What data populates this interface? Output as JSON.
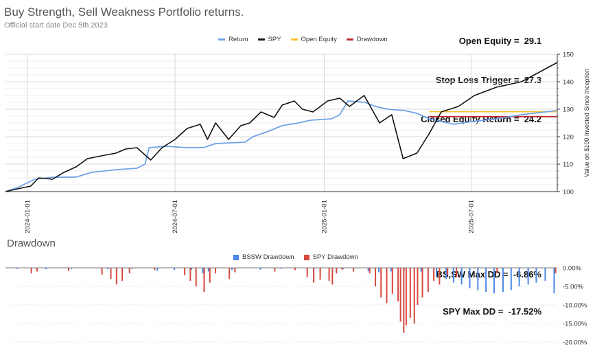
{
  "header": {
    "title": "Buy Strength, Sell Weakness Portfolio returns.",
    "subtitle": "Official start date Dec 5th 2023",
    "stats": [
      {
        "label": "Open Equity",
        "value": "29.1"
      },
      {
        "label": "Stop Loss Trigger",
        "value": "27.3"
      },
      {
        "label": "Closed Equity Return",
        "value": "24.2"
      }
    ]
  },
  "drawdown_section": {
    "title": "Drawdown",
    "stats": [
      {
        "label": "BS,SW Max DD",
        "value": "-6.86%"
      },
      {
        "label": "SPY Max DD",
        "value": "-17.52%"
      }
    ]
  },
  "colors": {
    "return": "#6fa3e8",
    "spy": "#111111",
    "open_equity": "#f6c024",
    "drawdown": "#c0282d",
    "bssw_dd": "#4a87e8",
    "spy_dd": "#d9473d"
  },
  "chart_data": [
    {
      "type": "line",
      "ylabel": "Value on $100 Invested Since Inception",
      "ylim": [
        100,
        150
      ],
      "y_ticks": [
        "100",
        "110",
        "120",
        "130",
        "140",
        "150"
      ],
      "x_ticks": [
        "2024-01-01",
        "2024-07-01",
        "2025-01-01",
        "2025-07-01"
      ],
      "xlim": [
        "2023-12-05",
        "2025-10-15"
      ],
      "grid": true,
      "legend": "top-center",
      "series": [
        {
          "name": "Return",
          "points": [
            [
              "2023-12-05",
              100
            ],
            [
              "2023-12-20",
              101.5
            ],
            [
              "2024-01-10",
              104.5
            ],
            [
              "2024-02-01",
              105.2
            ],
            [
              "2024-03-01",
              105.3
            ],
            [
              "2024-03-20",
              107
            ],
            [
              "2024-04-20",
              108
            ],
            [
              "2024-05-15",
              108.5
            ],
            [
              "2024-05-25",
              110
            ],
            [
              "2024-05-30",
              116
            ],
            [
              "2024-06-20",
              116.5
            ],
            [
              "2024-07-15",
              116
            ],
            [
              "2024-08-05",
              116
            ],
            [
              "2024-08-20",
              117.5
            ],
            [
              "2024-09-25",
              118
            ],
            [
              "2024-10-05",
              120
            ],
            [
              "2024-10-20",
              121.5
            ],
            [
              "2024-11-10",
              124
            ],
            [
              "2024-11-30",
              125
            ],
            [
              "2024-12-15",
              126
            ],
            [
              "2025-01-10",
              126.5
            ],
            [
              "2025-01-20",
              128
            ],
            [
              "2025-01-30",
              133
            ],
            [
              "2025-02-20",
              132.5
            ],
            [
              "2025-03-05",
              131
            ],
            [
              "2025-03-20",
              130
            ],
            [
              "2025-04-10",
              129.5
            ],
            [
              "2025-04-25",
              128.5
            ],
            [
              "2025-05-10",
              126.5
            ],
            [
              "2025-06-10",
              124.5
            ],
            [
              "2025-07-01",
              125.5
            ],
            [
              "2025-08-01",
              126.5
            ],
            [
              "2025-09-01",
              128
            ],
            [
              "2025-10-15",
              129.5
            ]
          ]
        },
        {
          "name": "SPY",
          "points": [
            [
              "2023-12-05",
              100
            ],
            [
              "2023-12-20",
              101
            ],
            [
              "2024-01-05",
              102
            ],
            [
              "2024-01-15",
              105
            ],
            [
              "2024-02-01",
              104.5
            ],
            [
              "2024-02-15",
              107
            ],
            [
              "2024-03-01",
              109
            ],
            [
              "2024-03-15",
              112
            ],
            [
              "2024-04-01",
              113
            ],
            [
              "2024-04-19",
              114
            ],
            [
              "2024-05-01",
              115.5
            ],
            [
              "2024-05-15",
              116
            ],
            [
              "2024-06-01",
              111.5
            ],
            [
              "2024-06-15",
              116
            ],
            [
              "2024-07-01",
              119
            ],
            [
              "2024-07-16",
              123
            ],
            [
              "2024-08-01",
              124.5
            ],
            [
              "2024-08-10",
              119
            ],
            [
              "2024-08-20",
              125
            ],
            [
              "2024-09-05",
              119
            ],
            [
              "2024-09-20",
              124
            ],
            [
              "2024-10-01",
              125
            ],
            [
              "2024-10-15",
              129
            ],
            [
              "2024-10-31",
              127
            ],
            [
              "2024-11-10",
              131.5
            ],
            [
              "2024-11-25",
              133
            ],
            [
              "2024-12-05",
              130
            ],
            [
              "2024-12-18",
              129
            ],
            [
              "2025-01-05",
              133
            ],
            [
              "2025-01-20",
              134
            ],
            [
              "2025-02-01",
              131
            ],
            [
              "2025-02-19",
              135
            ],
            [
              "2025-03-10",
              125
            ],
            [
              "2025-03-25",
              128
            ],
            [
              "2025-04-08",
              112
            ],
            [
              "2025-04-25",
              114
            ],
            [
              "2025-05-10",
              121
            ],
            [
              "2025-05-25",
              129
            ],
            [
              "2025-06-15",
              131
            ],
            [
              "2025-07-05",
              135
            ],
            [
              "2025-08-01",
              138
            ],
            [
              "2025-09-01",
              140
            ],
            [
              "2025-10-15",
              147
            ]
          ]
        },
        {
          "name": "Open Equity",
          "points": [
            [
              "2025-05-10",
              129.1
            ],
            [
              "2025-10-15",
              129.1
            ]
          ]
        },
        {
          "name": "Drawdown",
          "points": [
            [
              "2025-05-10",
              127.3
            ],
            [
              "2025-10-15",
              127.3
            ]
          ]
        }
      ]
    },
    {
      "type": "bar",
      "title": "Drawdown",
      "ylim": [
        -20,
        0
      ],
      "y_ticks": [
        "0.00%",
        "-5.00%",
        "-10.00%",
        "-15.00%",
        "-20.00%"
      ],
      "legend": "top-center",
      "series": [
        {
          "name": "BSSW Drawdown",
          "points": [
            [
              "2023-12-20",
              -0.3
            ],
            [
              "2024-01-25",
              -0.4
            ],
            [
              "2024-02-25",
              -0.3
            ],
            [
              "2024-04-10",
              -0.4
            ],
            [
              "2024-05-10",
              -0.3
            ],
            [
              "2024-06-10",
              -0.8
            ],
            [
              "2024-07-01",
              -0.6
            ],
            [
              "2024-07-22",
              -0.5
            ],
            [
              "2024-08-05",
              -1.5
            ],
            [
              "2024-08-12",
              -1.0
            ],
            [
              "2024-09-10",
              -0.6
            ],
            [
              "2024-10-15",
              -0.5
            ],
            [
              "2024-11-10",
              -0.3
            ],
            [
              "2024-12-20",
              -0.5
            ],
            [
              "2025-01-25",
              -0.3
            ],
            [
              "2025-02-25",
              -0.9
            ],
            [
              "2025-03-10",
              -1.2
            ],
            [
              "2025-03-25",
              -1.0
            ],
            [
              "2025-04-10",
              -0.8
            ],
            [
              "2025-05-01",
              -1.0
            ],
            [
              "2025-05-20",
              -2.5
            ],
            [
              "2025-06-01",
              -3.0
            ],
            [
              "2025-06-10",
              -4.0
            ],
            [
              "2025-06-20",
              -4.5
            ],
            [
              "2025-06-30",
              -5.5
            ],
            [
              "2025-07-10",
              -6.0
            ],
            [
              "2025-07-20",
              -6.5
            ],
            [
              "2025-07-30",
              -6.86
            ],
            [
              "2025-08-10",
              -6.5
            ],
            [
              "2025-08-20",
              -6.0
            ],
            [
              "2025-08-30",
              -5.0
            ],
            [
              "2025-09-10",
              -4.5
            ],
            [
              "2025-09-20",
              -4.0
            ],
            [
              "2025-10-01",
              -3.5
            ],
            [
              "2025-10-12",
              -6.9
            ]
          ]
        },
        {
          "name": "SPY Drawdown",
          "points": [
            [
              "2024-01-05",
              -1.5
            ],
            [
              "2024-01-12",
              -1.0
            ],
            [
              "2024-02-20",
              -0.8
            ],
            [
              "2024-04-01",
              -1.8
            ],
            [
              "2024-04-12",
              -3.0
            ],
            [
              "2024-04-19",
              -4.5
            ],
            [
              "2024-04-26",
              -3.5
            ],
            [
              "2024-05-05",
              -1.5
            ],
            [
              "2024-06-05",
              -0.6
            ],
            [
              "2024-07-12",
              -2.0
            ],
            [
              "2024-07-19",
              -3.5
            ],
            [
              "2024-07-26",
              -5.0
            ],
            [
              "2024-08-05",
              -6.5
            ],
            [
              "2024-08-12",
              -4.0
            ],
            [
              "2024-08-19",
              -1.5
            ],
            [
              "2024-09-05",
              -3.0
            ],
            [
              "2024-09-12",
              -1.2
            ],
            [
              "2024-10-31",
              -1.0
            ],
            [
              "2024-11-25",
              -0.6
            ],
            [
              "2024-12-10",
              -2.5
            ],
            [
              "2024-12-18",
              -4.0
            ],
            [
              "2024-12-26",
              -3.2
            ],
            [
              "2025-01-06",
              -3.5
            ],
            [
              "2025-01-10",
              -4.5
            ],
            [
              "2025-01-15",
              -1.5
            ],
            [
              "2025-01-22",
              -0.5
            ],
            [
              "2025-02-05",
              -1.0
            ],
            [
              "2025-02-25",
              -1.5
            ],
            [
              "2025-03-04",
              -5.0
            ],
            [
              "2025-03-11",
              -8.0
            ],
            [
              "2025-03-18",
              -9.5
            ],
            [
              "2025-03-25",
              -7.0
            ],
            [
              "2025-04-01",
              -9.0
            ],
            [
              "2025-04-04",
              -14.5
            ],
            [
              "2025-04-08",
              -17.52
            ],
            [
              "2025-04-11",
              -15.5
            ],
            [
              "2025-04-16",
              -13.5
            ],
            [
              "2025-04-21",
              -15.0
            ],
            [
              "2025-04-25",
              -10.0
            ],
            [
              "2025-05-01",
              -8.0
            ],
            [
              "2025-05-08",
              -6.5
            ],
            [
              "2025-05-15",
              -3.5
            ],
            [
              "2025-05-22",
              -4.5
            ],
            [
              "2025-06-01",
              -2.0
            ],
            [
              "2025-06-12",
              -2.5
            ],
            [
              "2025-08-01",
              -1.5
            ],
            [
              "2025-10-12",
              -1.5
            ]
          ]
        }
      ]
    }
  ]
}
